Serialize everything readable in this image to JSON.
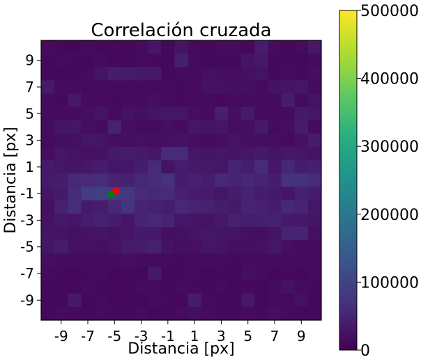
{
  "chart_data": {
    "type": "heatmap",
    "title": "Correlación cruzada",
    "xlabel": "Distancia [px]",
    "ylabel": "Distancia [px]",
    "x_range": [
      -10.5,
      10.5
    ],
    "y_range": [
      -10.5,
      10.5
    ],
    "x_ticks": [
      -9,
      -7,
      -5,
      -3,
      -1,
      1,
      3,
      5,
      7,
      9
    ],
    "y_ticks": [
      9,
      7,
      5,
      3,
      1,
      -1,
      -3,
      -5,
      -7,
      -9
    ],
    "x_tick_labels": [
      "-9",
      "-7",
      "-5",
      "-3",
      "-1",
      "1",
      "3",
      "5",
      "7",
      "9"
    ],
    "y_tick_labels": [
      "9",
      "7",
      "5",
      "3",
      "1",
      "-1",
      "-3",
      "-5",
      "-7",
      "-9"
    ],
    "colormap": "viridis",
    "color_range": [
      0,
      500000
    ],
    "colorbar_ticks": [
      0,
      100000,
      200000,
      300000,
      400000,
      500000
    ],
    "colorbar_tick_labels": [
      "0",
      "100000",
      "200000",
      "300000",
      "400000",
      "500000"
    ],
    "grid": false,
    "values_rows_top_to_bottom": [
      [
        15000,
        12000,
        10000,
        14000,
        11000,
        13000,
        12000,
        15000,
        30000,
        11000,
        28000,
        13000,
        12000,
        14000,
        16000,
        12000,
        38000,
        15000,
        12000,
        14000,
        32000
      ],
      [
        12000,
        14000,
        13000,
        12000,
        15000,
        11000,
        12000,
        14000,
        13000,
        12000,
        42000,
        14000,
        12000,
        13000,
        12000,
        28000,
        32000,
        12000,
        13000,
        12000,
        14000
      ],
      [
        13000,
        12000,
        12000,
        14000,
        25000,
        40000,
        38000,
        35000,
        32000,
        12000,
        14000,
        16000,
        22000,
        20000,
        18000,
        22000,
        25000,
        12000,
        14000,
        12000,
        18000
      ],
      [
        35000,
        14000,
        16000,
        13000,
        15000,
        14000,
        13000,
        16000,
        15000,
        14000,
        13000,
        14000,
        24000,
        22000,
        20000,
        18000,
        16000,
        25000,
        28000,
        30000,
        14000
      ],
      [
        14000,
        13000,
        32000,
        14000,
        15000,
        13000,
        15000,
        14000,
        18000,
        16000,
        13000,
        15000,
        14000,
        13000,
        16000,
        14000,
        15000,
        14000,
        40000,
        16000,
        25000
      ],
      [
        15000,
        16000,
        14000,
        18000,
        25000,
        15000,
        25000,
        20000,
        28000,
        30000,
        30000,
        18000,
        15000,
        42000,
        20000,
        35000,
        14000,
        16000,
        14000,
        35000,
        30000
      ],
      [
        14000,
        28000,
        30000,
        18000,
        16000,
        48000,
        18000,
        14000,
        16000,
        18000,
        16000,
        30000,
        25000,
        30000,
        18000,
        20000,
        35000,
        16000,
        18000,
        40000,
        16000
      ],
      [
        16000,
        20000,
        22000,
        30000,
        28000,
        18000,
        18000,
        22000,
        20000,
        22000,
        24000,
        18000,
        16000,
        20000,
        25000,
        18000,
        20000,
        18000,
        16000,
        24000,
        40000
      ],
      [
        18000,
        30000,
        25000,
        22000,
        24000,
        35000,
        40000,
        35000,
        30000,
        60000,
        60000,
        30000,
        25000,
        30000,
        28000,
        30000,
        35000,
        28000,
        32000,
        30000,
        25000
      ],
      [
        35000,
        30000,
        28000,
        32000,
        38000,
        30000,
        30000,
        40000,
        60000,
        25000,
        38000,
        35000,
        32000,
        30000,
        50000,
        40000,
        60000,
        30000,
        55000,
        38000,
        42000
      ],
      [
        35000,
        40000,
        55000,
        60000,
        65000,
        50000,
        45000,
        55000,
        60000,
        70000,
        40000,
        45000,
        40000,
        55000,
        50000,
        55000,
        50000,
        38000,
        70000,
        70000,
        60000
      ],
      [
        30000,
        35000,
        60000,
        90000,
        95000,
        85000,
        80000,
        60000,
        55000,
        60000,
        45000,
        40000,
        35000,
        30000,
        40000,
        45000,
        40000,
        35000,
        30000,
        45000,
        40000
      ],
      [
        22000,
        45000,
        65000,
        35000,
        40000,
        55000,
        75000,
        50000,
        45000,
        40000,
        55000,
        50000,
        45000,
        38000,
        35000,
        50000,
        45000,
        40000,
        55000,
        50000,
        30000
      ],
      [
        25000,
        32000,
        30000,
        40000,
        45000,
        40000,
        30000,
        50000,
        55000,
        50000,
        30000,
        28000,
        25000,
        32000,
        45000,
        40000,
        42000,
        45000,
        35000,
        32000,
        28000
      ],
      [
        28000,
        25000,
        22000,
        25000,
        28000,
        24000,
        30000,
        35000,
        35000,
        20000,
        22000,
        25000,
        30000,
        28000,
        25000,
        22000,
        20000,
        28000,
        50000,
        50000,
        22000
      ],
      [
        30000,
        40000,
        24000,
        22000,
        20000,
        25000,
        35000,
        40000,
        45000,
        25000,
        20000,
        22000,
        30000,
        25000,
        20000,
        18000,
        22000,
        30000,
        18000,
        16000,
        15000
      ],
      [
        18000,
        16000,
        15000,
        14000,
        16000,
        15000,
        18000,
        16000,
        15000,
        14000,
        13000,
        16000,
        15000,
        14000,
        13000,
        16000,
        15000,
        14000,
        16000,
        15000,
        14000
      ],
      [
        14000,
        13000,
        12000,
        13000,
        14000,
        12000,
        13000,
        12000,
        35000,
        12000,
        13000,
        14000,
        12000,
        13000,
        12000,
        20000,
        14000,
        12000,
        13000,
        12000,
        14000
      ],
      [
        12000,
        13000,
        12000,
        14000,
        12000,
        13000,
        12000,
        14000,
        13000,
        12000,
        14000,
        13000,
        12000,
        14000,
        12000,
        13000,
        12000,
        14000,
        25000,
        14000,
        13000
      ],
      [
        13000,
        12000,
        35000,
        12000,
        14000,
        12000,
        13000,
        12000,
        14000,
        13000,
        12000,
        38000,
        14000,
        12000,
        13000,
        32000,
        12000,
        14000,
        13000,
        22000,
        12000
      ],
      [
        12000,
        14000,
        13000,
        12000,
        14000,
        13000,
        12000,
        14000,
        12000,
        13000,
        14000,
        20000,
        14000,
        13000,
        12000,
        14000,
        13000,
        20000,
        14000,
        12000,
        13000
      ]
    ],
    "markers": [
      {
        "color": "#ff0000",
        "x": -4.9,
        "y": -0.8
      },
      {
        "color": "#008000",
        "x": -5.25,
        "y": -1.1
      }
    ]
  }
}
